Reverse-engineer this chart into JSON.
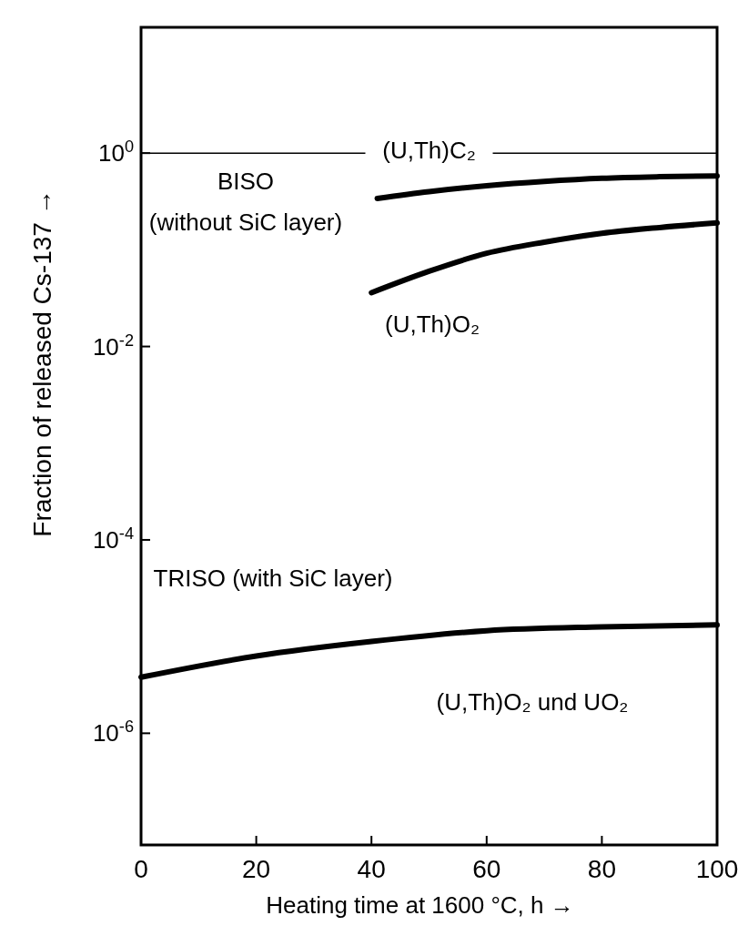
{
  "chart_data": {
    "type": "line",
    "xlabel": "Heating time at 1600 °C, h  →",
    "ylabel": "Fraction of released Cs-137  →",
    "log": "y",
    "xlim": [
      0,
      100
    ],
    "ylim": [
      7e-08,
      20
    ],
    "xticks": [
      0,
      20,
      40,
      60,
      80,
      100
    ],
    "yticks": [
      {
        "value": 1,
        "label": "10$^{0}$"
      },
      {
        "value": 0.01,
        "label": "10$^{-2}$"
      },
      {
        "value": 0.0001,
        "label": "10$^{-4}$"
      },
      {
        "value": 1e-06,
        "label": "10$^{-6}$"
      }
    ],
    "grid": false,
    "ref_lines": [
      {
        "axis": "y",
        "value": 1,
        "label": "(U,Th)C₂",
        "color": "#000000"
      }
    ],
    "series": [
      {
        "color": "#000000",
        "x": [
          41,
          50,
          60,
          70,
          80,
          90,
          100
        ],
        "values": [
          0.34,
          0.4,
          0.46,
          0.51,
          0.55,
          0.57,
          0.58
        ]
      },
      {
        "color": "#000000",
        "x": [
          40,
          50,
          60,
          70,
          80,
          90,
          100
        ],
        "values": [
          0.036,
          0.06,
          0.092,
          0.12,
          0.148,
          0.17,
          0.19
        ]
      },
      {
        "color": "#000000",
        "x": [
          0,
          20,
          40,
          60,
          80,
          100
        ],
        "values": [
          3.8e-06,
          6.3e-06,
          8.9e-06,
          1.15e-05,
          1.26e-05,
          1.32e-05
        ]
      }
    ],
    "annotations": [
      "BISO",
      "(without SiC layer)",
      "(U,Th)O₂",
      "TRISO (with SiC layer)",
      "(U,Th)O₂ und UO₂"
    ]
  }
}
